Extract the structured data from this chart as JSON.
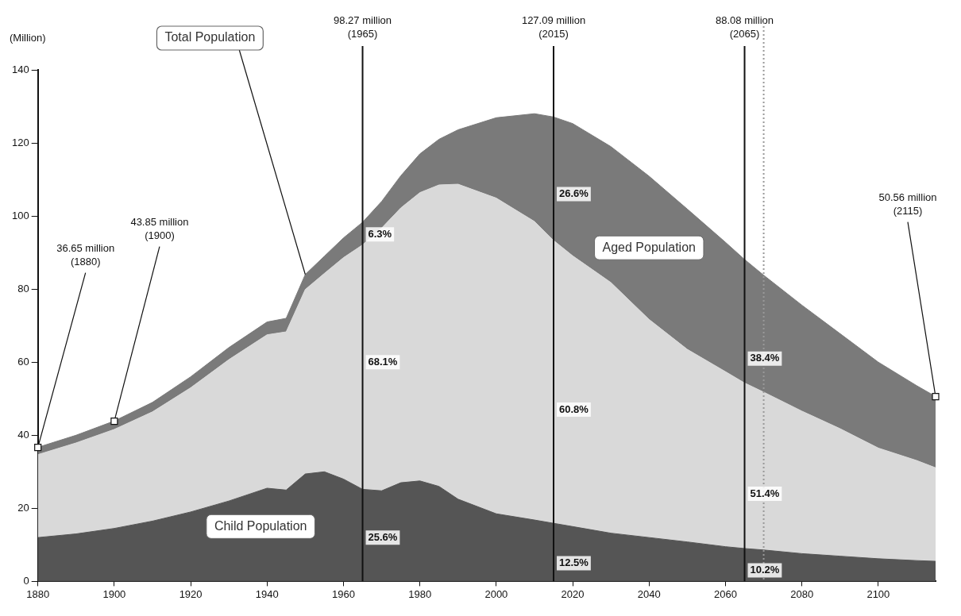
{
  "chart_data": {
    "type": "area",
    "stacked": true,
    "ylabel": "(Million)",
    "x": [
      1880,
      1890,
      1900,
      1910,
      1920,
      1930,
      1940,
      1945,
      1950,
      1955,
      1960,
      1965,
      1970,
      1975,
      1980,
      1985,
      1990,
      2000,
      2010,
      2015,
      2020,
      2030,
      2040,
      2050,
      2060,
      2065,
      2070,
      2080,
      2090,
      2100,
      2110,
      2115
    ],
    "series": [
      {
        "name": "Child Population",
        "color": "#555555",
        "values": [
          12,
          13,
          14.5,
          16.5,
          19,
          22,
          25.5,
          25,
          29.4,
          30,
          28,
          25.2,
          24.8,
          27,
          27.5,
          26,
          22.5,
          18.5,
          16.8,
          15.9,
          15,
          13.2,
          12,
          10.8,
          9.5,
          9,
          8.6,
          7.6,
          6.9,
          6.2,
          5.7,
          5.5
        ]
      },
      {
        "color": "#d9d9d9",
        "values": [
          22.7,
          24.9,
          27.1,
          29.9,
          34,
          38.7,
          42,
          43.3,
          50.5,
          54.3,
          60.6,
          66.9,
          71.9,
          75.2,
          78.9,
          82.5,
          86.2,
          86.4,
          81.7,
          77.4,
          74.1,
          68.6,
          59.7,
          52.7,
          47.9,
          45.3,
          43.2,
          39,
          34.9,
          30.3,
          27.4,
          25.6
        ]
      },
      {
        "name": "Aged Population",
        "color": "#7a7a7a",
        "values": [
          2,
          2.1,
          2.3,
          2.6,
          3,
          3.3,
          3.5,
          3.7,
          4.1,
          4.7,
          5.4,
          6.2,
          7.3,
          8.8,
          10.6,
          12.5,
          14.9,
          22,
          29.5,
          33.8,
          36.2,
          37.2,
          39.2,
          38.4,
          35.4,
          33.8,
          32,
          29,
          26,
          23.5,
          20.5,
          19.5
        ]
      }
    ],
    "xlim": [
      1880,
      2115
    ],
    "xticks": [
      1880,
      1900,
      1920,
      1940,
      1960,
      1980,
      2000,
      2020,
      2040,
      2060,
      2080,
      2100
    ],
    "ylim": [
      0,
      140
    ],
    "yticks": [
      0,
      20,
      40,
      60,
      80,
      100,
      120,
      140
    ],
    "grid": false,
    "legend": false,
    "ref_lines": [
      {
        "axis": "x",
        "value": 1965,
        "label": "98.27 million\n(1965)"
      },
      {
        "axis": "x",
        "value": 2015,
        "label": "127.09 million\n(2015)"
      },
      {
        "axis": "x",
        "value": 2065,
        "label": "88.08 million\n(2065)"
      },
      {
        "axis": "x",
        "value": 2070,
        "line_style": "dotted",
        "color": "#999999"
      }
    ],
    "annotations": [
      {
        "text": "Total Population",
        "x": 1950,
        "y": 84
      },
      {
        "text": "36.65 million\n(1880)",
        "x": 1880,
        "y": 36.65
      },
      {
        "text": "43.85 million\n(1900)",
        "x": 1900,
        "y": 43.85
      },
      {
        "text": "50.56 million\n(2115)",
        "x": 2115,
        "y": 50.56
      },
      {
        "text": "6.3%",
        "x": 1965,
        "y": 95
      },
      {
        "text": "68.1%",
        "x": 1965,
        "y": 60
      },
      {
        "text": "25.6%",
        "x": 1965,
        "y": 12
      },
      {
        "text": "26.6%",
        "x": 2015,
        "y": 106
      },
      {
        "text": "60.8%",
        "x": 2015,
        "y": 47
      },
      {
        "text": "12.5%",
        "x": 2015,
        "y": 5
      },
      {
        "text": "38.4%",
        "x": 2065,
        "y": 61
      },
      {
        "text": "51.4%",
        "x": 2065,
        "y": 24
      },
      {
        "text": "10.2%",
        "x": 2065,
        "y": 3
      }
    ]
  }
}
